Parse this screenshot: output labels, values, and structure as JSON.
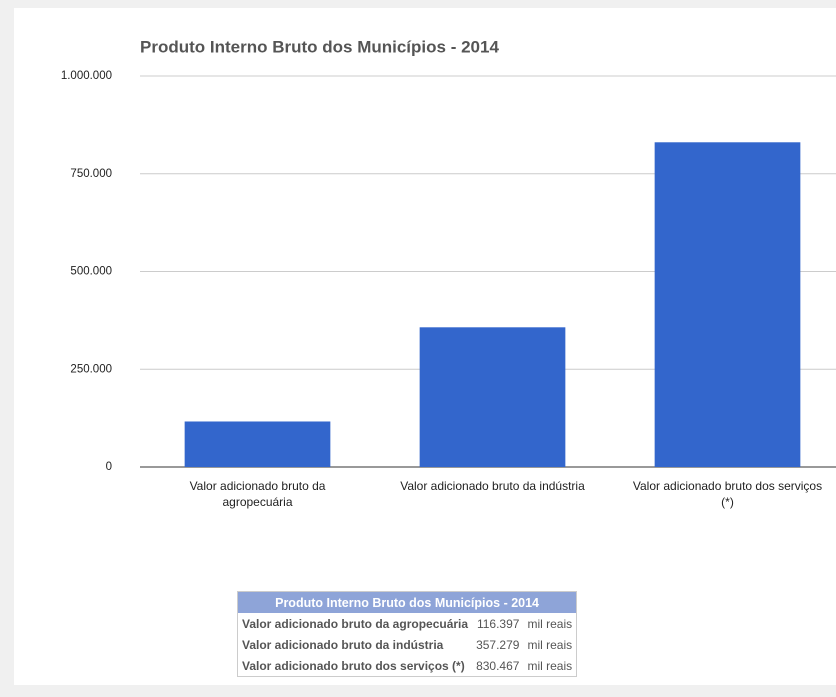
{
  "chart_data": {
    "type": "bar",
    "title": "Produto Interno Bruto dos Municípios - 2014",
    "categories": [
      "Valor adicionado bruto da agropecuária",
      "Valor adicionado bruto da indústria",
      "Valor adicionado bruto dos serviços (*)"
    ],
    "values": [
      116397,
      357279,
      830467
    ],
    "color": "#3366cc",
    "ylim": [
      0,
      1000000
    ],
    "yticks": [
      0,
      {
        "value": 250000,
        "label": "250.000"
      },
      {
        "value": 500000,
        "label": "500.000"
      },
      {
        "value": 750000,
        "label": "750.000"
      },
      {
        "value": 1000000,
        "label": "1.000.000"
      }
    ],
    "grid": true
  },
  "table": {
    "title": "Produto Interno Bruto dos Municípios - 2014",
    "rows": [
      [
        "Valor adicionado bruto da agropecuária",
        "116.397",
        "mil reais"
      ],
      [
        "Valor adicionado bruto da indústria",
        "357.279",
        "mil reais"
      ],
      [
        "Valor adicionado bruto dos serviços (*)",
        "830.467",
        "mil reais"
      ]
    ]
  }
}
